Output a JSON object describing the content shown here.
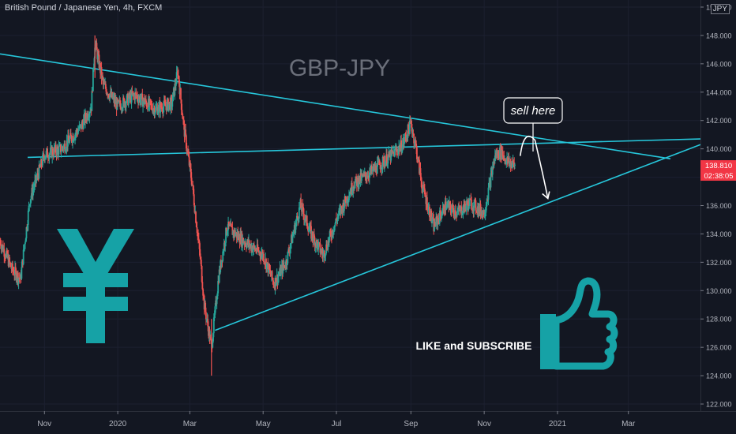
{
  "header": {
    "symbol_title": "British Pound / Japanese Yen, 4h, FXCM",
    "currency": "JPY"
  },
  "annotations": {
    "chart_label": "GBP-JPY",
    "sell_callout": "sell here",
    "cta": "LIKE and SUBSCRIBE"
  },
  "price_badges": {
    "last_price": "138.810",
    "countdown": "02:38:05"
  },
  "colors": {
    "background": "#131722",
    "trendline": "#26c6da",
    "teal_icon": "#16a2a6",
    "up_candle": "#26a69a",
    "down_candle": "#ef5350",
    "badge": "#f23645"
  },
  "icons": [
    "yen-icon",
    "thumbs-up-icon"
  ],
  "chart_data": {
    "type": "line",
    "title": "GBP-JPY",
    "ylim": [
      121.5,
      150.5
    ],
    "y_ticks": [
      "150.000",
      "148.000",
      "146.000",
      "144.000",
      "142.000",
      "140.000",
      "138.000",
      "136.000",
      "134.000",
      "132.000",
      "130.000",
      "128.000",
      "126.000",
      "124.000",
      "122.000"
    ],
    "x_ticks": [
      "Nov",
      "2020",
      "Mar",
      "May",
      "Jul",
      "Sep",
      "Nov",
      "2021",
      "Mar"
    ],
    "x_tick_dates": [
      "2019-11-01",
      "2020-01-01",
      "2020-03-01",
      "2020-05-01",
      "2020-07-01",
      "2020-09-01",
      "2020-11-01",
      "2021-01-01",
      "2021-03-01"
    ],
    "x_range": [
      "2019-09-25",
      "2021-04-30"
    ],
    "series": [
      {
        "x": [
          "2019-09-25",
          "2019-10-05",
          "2019-10-12",
          "2019-10-20",
          "2019-11-01",
          "2019-11-15",
          "2019-12-01",
          "2019-12-10",
          "2019-12-13",
          "2019-12-20",
          "2020-01-01",
          "2020-01-15",
          "2020-02-01",
          "2020-02-15",
          "2020-02-20",
          "2020-02-25",
          "2020-03-03",
          "2020-03-10",
          "2020-03-13",
          "2020-03-19",
          "2020-03-25",
          "2020-04-01",
          "2020-04-15",
          "2020-05-01",
          "2020-05-10",
          "2020-05-20",
          "2020-06-01",
          "2020-06-10",
          "2020-06-20",
          "2020-07-01",
          "2020-07-15",
          "2020-08-01",
          "2020-08-15",
          "2020-08-25",
          "2020-09-01",
          "2020-09-05",
          "2020-09-10",
          "2020-09-20",
          "2020-09-30",
          "2020-10-10",
          "2020-10-20",
          "2020-11-01",
          "2020-11-10",
          "2020-11-15",
          "2020-11-20",
          "2020-11-27"
        ],
        "values": [
          133.5,
          131.5,
          130.8,
          136.5,
          139.6,
          140.0,
          141.5,
          143.0,
          147.5,
          144.5,
          143.0,
          143.8,
          142.8,
          143.2,
          145.5,
          141.5,
          137.5,
          132.0,
          129.0,
          126.0,
          131.0,
          134.5,
          133.5,
          132.5,
          130.5,
          132.0,
          136.0,
          134.0,
          132.5,
          135.0,
          137.5,
          138.5,
          139.5,
          140.3,
          141.8,
          140.2,
          137.5,
          134.5,
          136.0,
          135.5,
          136.2,
          135.5,
          139.5,
          139.8,
          139.1,
          138.81
        ]
      }
    ],
    "trendlines": [
      {
        "from": [
          "2019-09-25",
          146.7
        ],
        "to": [
          "2021-04-05",
          139.3
        ]
      },
      {
        "from": [
          "2019-10-18",
          139.4
        ],
        "to": [
          "2021-04-30",
          140.7
        ]
      },
      {
        "from": [
          "2020-03-22",
          127.2
        ],
        "to": [
          "2021-04-30",
          140.3
        ]
      }
    ],
    "forecast_arrow": {
      "from": [
        "2020-12-01",
        139.5
      ],
      "peak": [
        "2020-12-08",
        140.5
      ],
      "to": [
        "2020-12-24",
        136.5
      ]
    },
    "last_price": 138.81
  }
}
